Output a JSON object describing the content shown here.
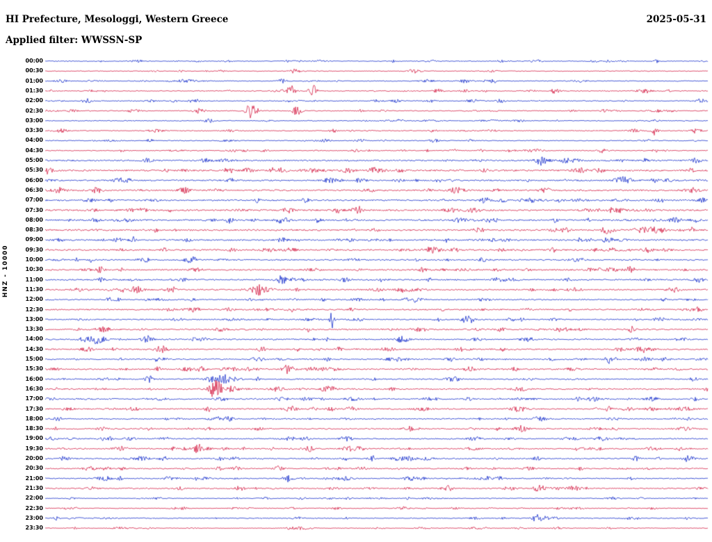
{
  "header": {
    "title": "HI Prefecture, Mesologgi, Western Greece",
    "date": "2025-05-31",
    "filter_line": "Applied filter: WWSSN-SP"
  },
  "axis": {
    "station_label": "HNZ - 10000",
    "row_labels": [
      "00:00",
      "00:30",
      "01:00",
      "01:30",
      "02:00",
      "02:30",
      "03:00",
      "03:30",
      "04:00",
      "04:30",
      "05:00",
      "05:30",
      "06:00",
      "06:30",
      "07:00",
      "07:30",
      "08:00",
      "08:30",
      "09:00",
      "09:30",
      "10:00",
      "10:30",
      "11:00",
      "11:30",
      "12:00",
      "12:30",
      "13:00",
      "13:30",
      "14:00",
      "14:30",
      "15:00",
      "15:30",
      "16:00",
      "16:30",
      "17:00",
      "17:30",
      "18:00",
      "18:30",
      "19:00",
      "19:30",
      "20:00",
      "20:30",
      "21:00",
      "21:30",
      "22:00",
      "22:30",
      "23:00",
      "23:30"
    ]
  },
  "chart_data": {
    "type": "line",
    "subtype": "helicorder-seismogram",
    "title": "HI Prefecture, Mesologgi, Western Greece",
    "date": "2025-05-31",
    "filter": "WWSSN-SP",
    "station_label": "HNZ - 10000",
    "rows": 48,
    "minutes_per_row": 30,
    "start_time": "00:00",
    "end_time": "24:00",
    "colors": {
      "first_half": "#0a23c8",
      "second_half": "#d2143c",
      "text": "#000000",
      "background": "#ffffff"
    },
    "noise_profile": [
      0.9,
      0.9,
      1.0,
      1.1,
      1.1,
      1.1,
      1.0,
      1.1,
      1.0,
      1.1,
      1.8,
      1.9,
      1.8,
      1.9,
      1.8,
      1.9,
      1.8,
      1.9,
      1.7,
      1.8,
      1.6,
      1.7,
      1.6,
      1.7,
      1.5,
      1.6,
      1.5,
      1.6,
      1.5,
      1.6,
      1.5,
      1.6,
      1.5,
      1.6,
      1.4,
      1.5,
      1.4,
      1.4,
      1.4,
      1.5,
      1.4,
      1.4,
      1.3,
      1.4,
      0.9,
      0.9,
      1.1,
      0.8
    ],
    "events": [
      {
        "row": 0,
        "pos": 0.829,
        "amp": 2.0,
        "w": 4,
        "time": "00:25"
      },
      {
        "row": 0,
        "pos": 0.923,
        "amp": 2.2,
        "w": 3,
        "time": "00:28"
      },
      {
        "row": 2,
        "pos": 0.357,
        "amp": 2.5,
        "w": 4,
        "time": "01:11"
      },
      {
        "row": 2,
        "pos": 0.677,
        "amp": 2.2,
        "w": 4,
        "time": "01:20"
      },
      {
        "row": 3,
        "pos": 0.372,
        "amp": 8.0,
        "w": 4,
        "time": "01:41"
      },
      {
        "row": 3,
        "pos": 0.404,
        "amp": 9.0,
        "w": 4,
        "time": "01:42"
      },
      {
        "row": 3,
        "pos": 0.593,
        "amp": 3.0,
        "w": 5,
        "time": "01:48"
      },
      {
        "row": 3,
        "pos": 0.771,
        "amp": 2.5,
        "w": 5,
        "time": "01:53"
      },
      {
        "row": 4,
        "pos": 0.063,
        "amp": 3.0,
        "w": 5,
        "time": "02:02"
      },
      {
        "row": 4,
        "pos": 0.687,
        "amp": 3.0,
        "w": 4,
        "time": "02:21"
      },
      {
        "row": 5,
        "pos": 0.31,
        "amp": 12.0,
        "w": 5,
        "time": "02:39"
      },
      {
        "row": 5,
        "pos": 0.378,
        "amp": 4.0,
        "w": 4,
        "time": "02:41"
      },
      {
        "row": 6,
        "pos": 0.247,
        "amp": 3.0,
        "w": 4,
        "time": "03:07"
      },
      {
        "row": 7,
        "pos": 0.435,
        "amp": 2.5,
        "w": 4,
        "time": "03:43"
      },
      {
        "row": 7,
        "pos": 0.918,
        "amp": 7.0,
        "w": 4,
        "time": "03:58"
      },
      {
        "row": 8,
        "pos": 0.157,
        "amp": 2.5,
        "w": 4,
        "time": "04:05"
      },
      {
        "row": 9,
        "pos": 0.839,
        "amp": 3.0,
        "w": 4,
        "time": "04:55"
      },
      {
        "row": 11,
        "pos": 0.357,
        "amp": 3.5,
        "w": 5,
        "time": "05:41"
      },
      {
        "row": 13,
        "pos": 0.21,
        "amp": 3.5,
        "w": 5,
        "time": "06:36"
      },
      {
        "row": 14,
        "pos": 0.393,
        "amp": 3.0,
        "w": 4,
        "time": "07:12"
      },
      {
        "row": 14,
        "pos": 0.734,
        "amp": 3.0,
        "w": 4,
        "time": "07:22"
      },
      {
        "row": 16,
        "pos": 0.981,
        "amp": 3.0,
        "w": 4,
        "time": "08:29"
      },
      {
        "row": 19,
        "pos": 0.178,
        "amp": 3.5,
        "w": 4,
        "time": "09:35"
      },
      {
        "row": 20,
        "pos": 0.22,
        "amp": 5.0,
        "w": 6,
        "time": "10:07"
      },
      {
        "row": 21,
        "pos": 0.084,
        "amp": 3.5,
        "w": 4,
        "time": "10:33"
      },
      {
        "row": 22,
        "pos": 0.357,
        "amp": 4.5,
        "w": 5,
        "time": "11:11"
      },
      {
        "row": 23,
        "pos": 0.322,
        "amp": 6.0,
        "w": 4,
        "time": "11:40"
      },
      {
        "row": 25,
        "pos": 0.986,
        "amp": 3.5,
        "w": 4,
        "time": "12:59"
      },
      {
        "row": 26,
        "pos": 0.433,
        "amp": 14.0,
        "w": 2,
        "time": "13:13"
      },
      {
        "row": 26,
        "pos": 0.593,
        "amp": 3.0,
        "w": 4,
        "time": "13:18"
      },
      {
        "row": 28,
        "pos": 0.079,
        "amp": 4.5,
        "w": 5,
        "time": "14:02"
      },
      {
        "row": 28,
        "pos": 0.157,
        "amp": 3.0,
        "w": 4,
        "time": "14:05"
      },
      {
        "row": 30,
        "pos": 0.85,
        "amp": 3.5,
        "w": 4,
        "time": "15:25"
      },
      {
        "row": 31,
        "pos": 0.236,
        "amp": 4.0,
        "w": 4,
        "time": "15:37"
      },
      {
        "row": 32,
        "pos": 0.157,
        "amp": 5.0,
        "w": 4,
        "time": "16:05"
      },
      {
        "row": 32,
        "pos": 0.265,
        "amp": 6.0,
        "w": 5,
        "time": "16:08"
      },
      {
        "row": 33,
        "pos": 0.257,
        "amp": 13.0,
        "w": 7,
        "time": "16:38"
      },
      {
        "row": 35,
        "pos": 0.247,
        "amp": 4.0,
        "w": 4,
        "time": "17:37"
      },
      {
        "row": 35,
        "pos": 0.85,
        "amp": 3.5,
        "w": 4,
        "time": "17:55"
      },
      {
        "row": 36,
        "pos": 0.278,
        "amp": 3.0,
        "w": 4,
        "time": "18:08"
      },
      {
        "row": 38,
        "pos": 0.393,
        "amp": 3.5,
        "w": 4,
        "time": "19:12"
      },
      {
        "row": 38,
        "pos": 0.451,
        "amp": 3.0,
        "w": 4,
        "time": "19:14"
      },
      {
        "row": 39,
        "pos": 0.231,
        "amp": 7.0,
        "w": 5,
        "time": "19:37"
      },
      {
        "row": 39,
        "pos": 0.399,
        "amp": 4.0,
        "w": 4,
        "time": "19:42"
      },
      {
        "row": 40,
        "pos": 0.178,
        "amp": 3.5,
        "w": 4,
        "time": "20:05"
      },
      {
        "row": 40,
        "pos": 0.892,
        "amp": 3.5,
        "w": 4,
        "time": "20:27"
      },
      {
        "row": 41,
        "pos": 0.352,
        "amp": 4.0,
        "w": 4,
        "time": "20:41"
      },
      {
        "row": 42,
        "pos": 0.367,
        "amp": 5.5,
        "w": 5,
        "time": "21:11"
      },
      {
        "row": 43,
        "pos": 0.294,
        "amp": 5.5,
        "w": 4,
        "time": "21:39"
      },
      {
        "row": 43,
        "pos": 0.609,
        "amp": 3.0,
        "w": 4,
        "time": "21:48"
      },
      {
        "row": 46,
        "pos": 0.74,
        "amp": 4.0,
        "w": 4,
        "time": "23:22"
      }
    ]
  }
}
